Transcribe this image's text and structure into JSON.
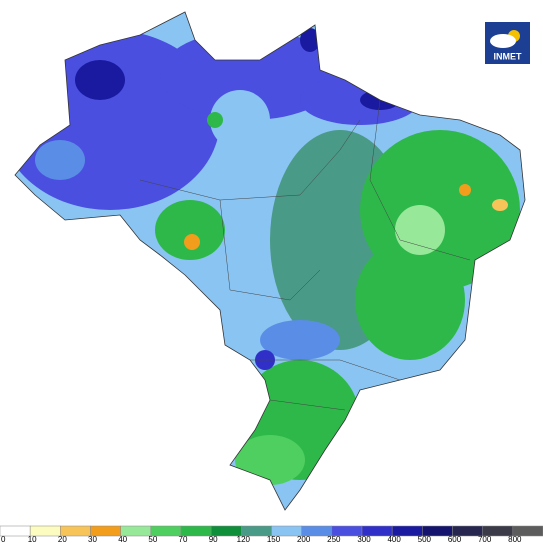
{
  "logo": {
    "text": "INMET"
  },
  "legend": {
    "ticks": [
      0,
      10,
      20,
      30,
      40,
      50,
      70,
      90,
      120,
      150,
      200,
      250,
      300,
      400,
      500,
      600,
      700,
      800
    ],
    "colors": [
      "#ffffff",
      "#fdfcc0",
      "#f7c45a",
      "#f29e1c",
      "#98e89a",
      "#4fcf5f",
      "#2eb84a",
      "#0f8f3a",
      "#4a9a88",
      "#8ac4f2",
      "#5a8ee6",
      "#4a4fe0",
      "#3030c8",
      "#1a1aa0",
      "#14146e",
      "#262650",
      "#3a3a48",
      "#5c5c5c"
    ]
  }
}
